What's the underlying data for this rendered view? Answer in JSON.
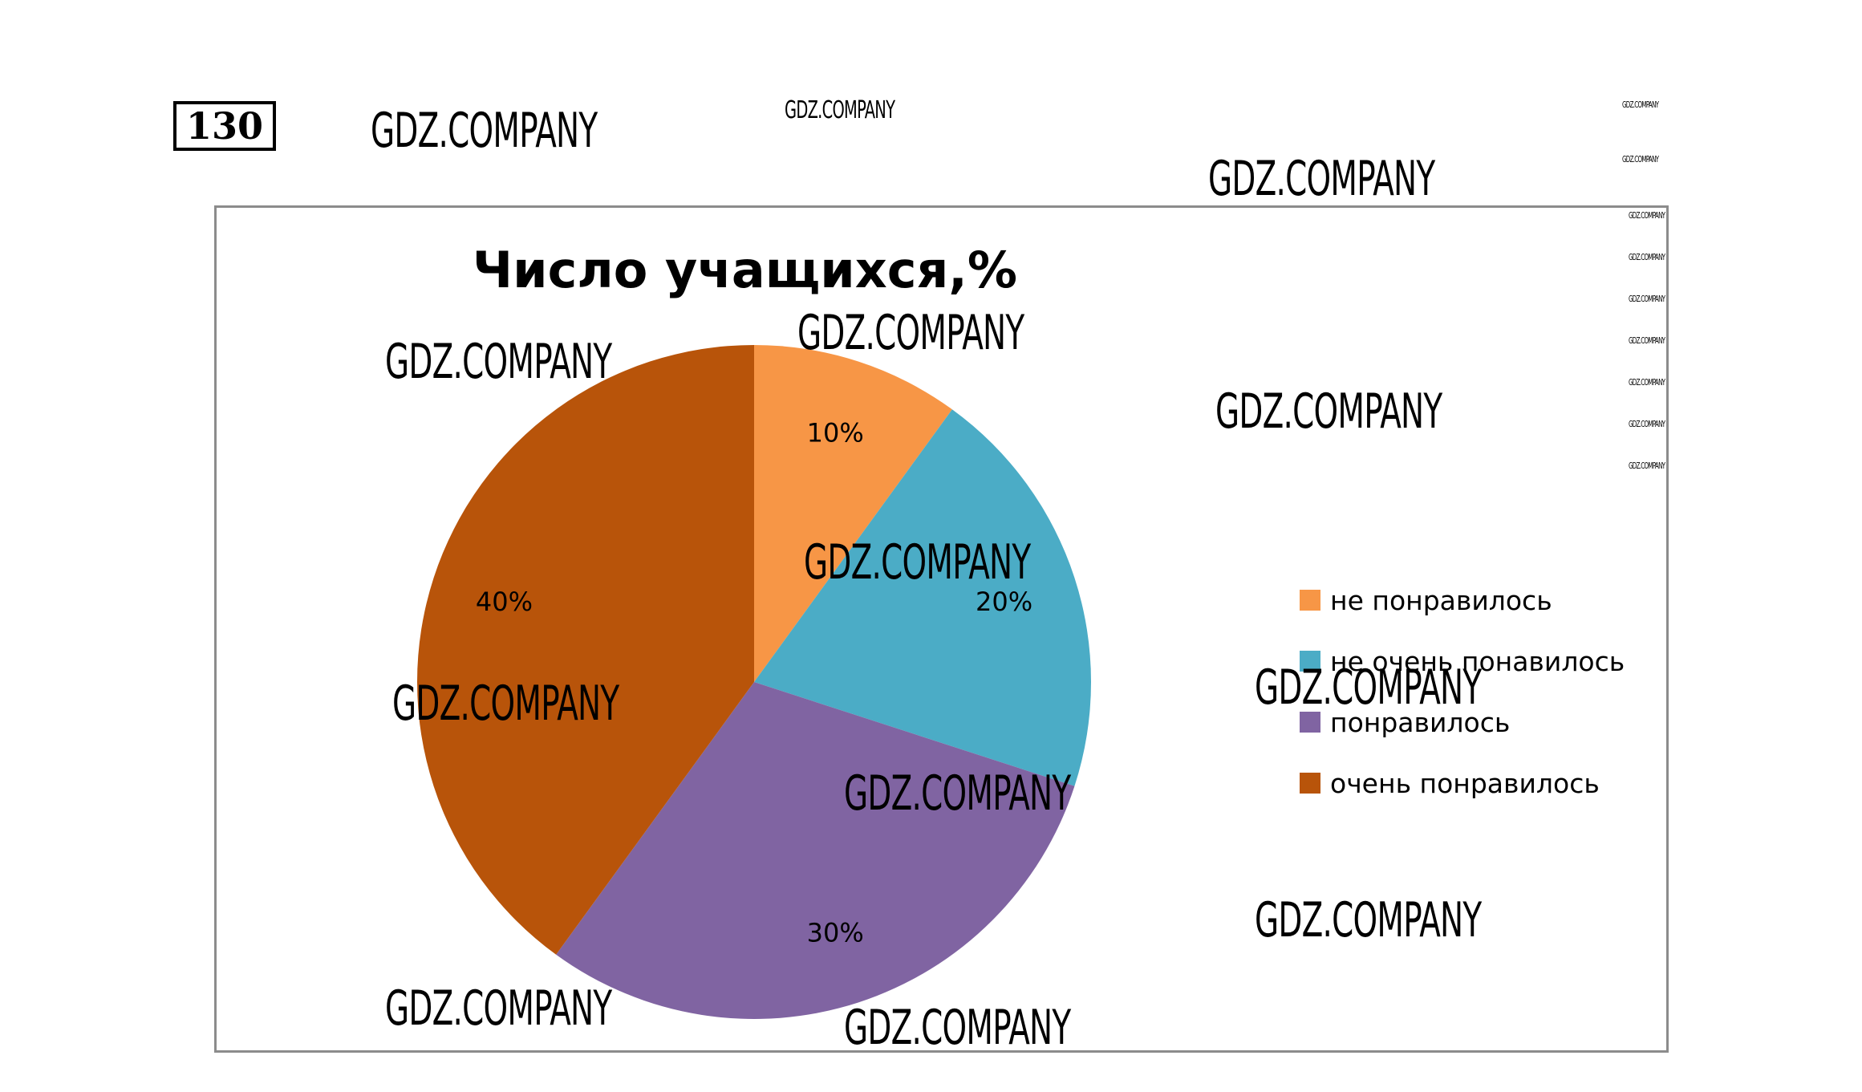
{
  "task_number": "130",
  "chart_data": {
    "type": "pie",
    "title": "Число учащихся,%",
    "categories": [
      "не понравилось",
      "не очень понавилось",
      "понравилось",
      "очень понравилось"
    ],
    "values": [
      10,
      20,
      30,
      40
    ],
    "data_labels": [
      "10%",
      "20%",
      "30%",
      "40%"
    ],
    "colors": [
      "#f79646",
      "#4bacc6",
      "#8064a2",
      "#b8540a"
    ],
    "legend_position": "right"
  },
  "watermarks": {
    "text": "GDZ.COMPANY"
  }
}
